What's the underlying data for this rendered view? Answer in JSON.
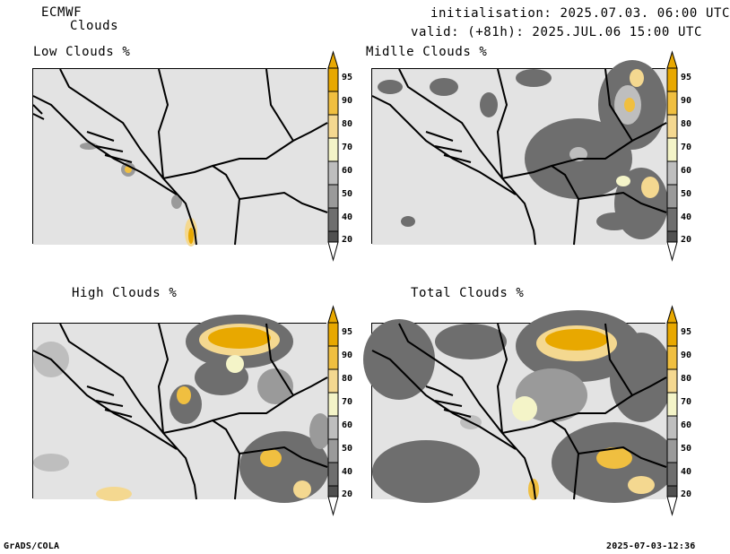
{
  "header": {
    "model": "ECMWF",
    "product": "Clouds",
    "init": "initialisation: 2025.07.03. 06:00 UTC",
    "valid": "valid: (+81h): 2025.JUL.06 15:00 UTC"
  },
  "panels": [
    {
      "title": "Low Clouds %"
    },
    {
      "title": "Midlle Clouds %"
    },
    {
      "title": "High Clouds %"
    },
    {
      "title": "Total Clouds %"
    }
  ],
  "colorbar": {
    "labels": [
      "95",
      "90",
      "80",
      "70",
      "60",
      "50",
      "40",
      "20"
    ],
    "colors": [
      "#e8a800",
      "#f0bf40",
      "#f4d890",
      "#f4f4c8",
      "#bebebe",
      "#9a9a9a",
      "#6e6e6e",
      "#505050"
    ],
    "low_end_color": "#ffffff",
    "high_end_color": "#e8a800"
  },
  "colors": {
    "background": "#e3e3e3",
    "border_line": "#000000"
  },
  "footer": {
    "left": "GrADS/COLA",
    "right": "2025-07-03-12:36"
  }
}
